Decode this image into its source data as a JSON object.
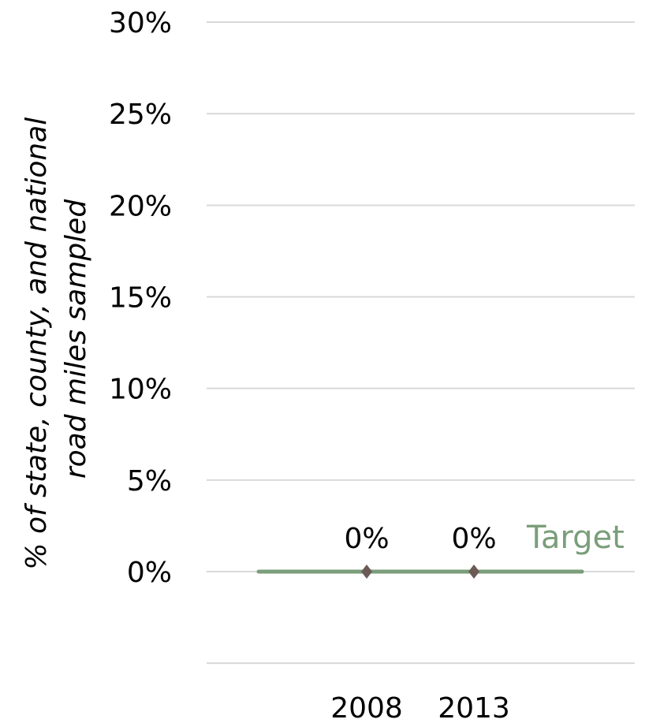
{
  "chart_data": {
    "type": "line",
    "ylabel_line1": "% of state, county, and national",
    "ylabel_line2": "road miles sampled",
    "yticks": [
      "30%",
      "25%",
      "20%",
      "15%",
      "10%",
      "5%",
      "0%"
    ],
    "ylim": [
      -0.05,
      0.3
    ],
    "categories": [
      "2008",
      "2013"
    ],
    "series": [
      {
        "name": "",
        "values": [
          0,
          0
        ],
        "data_labels": [
          "0%",
          "0%"
        ]
      }
    ],
    "target": {
      "label": "Target",
      "value": 0
    },
    "grid": true,
    "colors": {
      "target": "#7a9e7a",
      "marker": "#6b5a55",
      "grid": "#d9d9d9"
    }
  }
}
